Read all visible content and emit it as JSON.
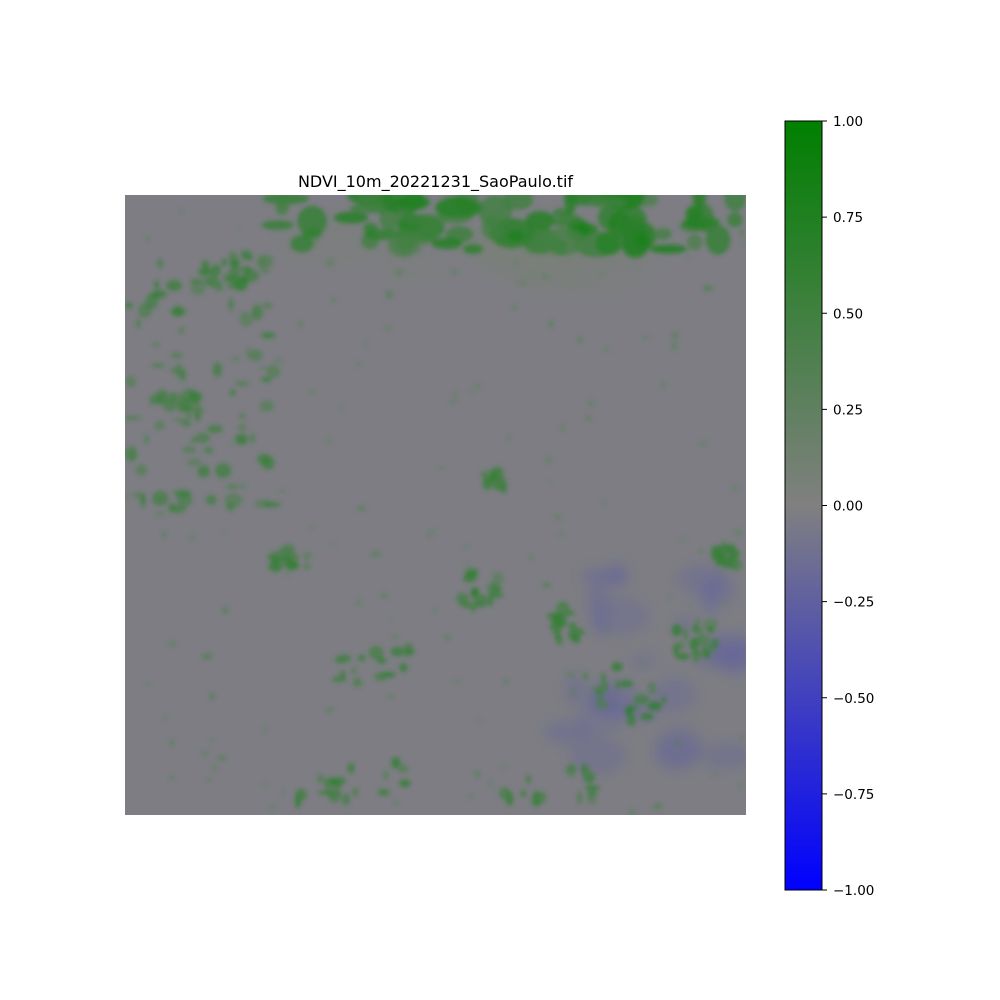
{
  "chart_data": {
    "type": "heatmap",
    "title": "NDVI_10m_20221231_SaoPaulo.tif",
    "xlabel": "",
    "ylabel": "",
    "axes_visible": false,
    "grid": false,
    "colormap": {
      "stops": [
        {
          "value": -1.0,
          "color": "#0000ff"
        },
        {
          "value": 0.0,
          "color": "#808080"
        },
        {
          "value": 1.0,
          "color": "#008000"
        }
      ]
    },
    "colorbar": {
      "range": [
        -1.0,
        1.0
      ],
      "placement": "right",
      "ticks": [
        {
          "value": 1.0,
          "label": "1.00"
        },
        {
          "value": 0.75,
          "label": "0.75"
        },
        {
          "value": 0.5,
          "label": "0.50"
        },
        {
          "value": 0.25,
          "label": "0.25"
        },
        {
          "value": 0.0,
          "label": "0.00"
        },
        {
          "value": -0.25,
          "label": "−0.25"
        },
        {
          "value": -0.5,
          "label": "−0.50"
        },
        {
          "value": -0.75,
          "label": "−0.75"
        },
        {
          "value": -1.0,
          "label": "−1.00"
        }
      ]
    },
    "background_value": -0.02
  }
}
